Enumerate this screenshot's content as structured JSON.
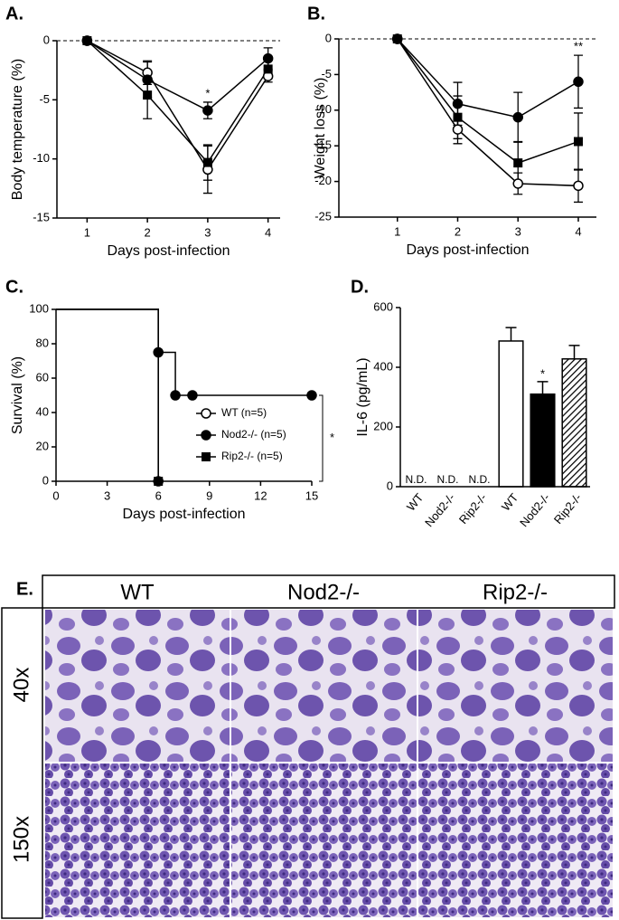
{
  "chart_data": [
    {
      "type": "line",
      "panel_label": "A.",
      "y_label": "Body temperature (%)",
      "x_label": "Days post-infection",
      "x": [
        1,
        2,
        3,
        4
      ],
      "xlim": [
        0.5,
        4.2
      ],
      "xticks": [
        1,
        2,
        3,
        4
      ],
      "ylim": [
        -15,
        0
      ],
      "yticks": [
        0,
        -5,
        -10,
        -15
      ],
      "reference_line": 0,
      "series": [
        {
          "marker": "open-circle",
          "color": "#000000",
          "values": [
            0,
            -2.7,
            -10.9,
            -3.0
          ],
          "errors": [
            0,
            1.0,
            2.0,
            0.5
          ]
        },
        {
          "marker": "circle",
          "color": "#000000",
          "values": [
            0,
            -3.3,
            -5.9,
            -1.5
          ],
          "errors": [
            0,
            1.5,
            0.7,
            0.9
          ]
        },
        {
          "marker": "square",
          "color": "#000000",
          "values": [
            0,
            -4.6,
            -10.3,
            -2.4
          ],
          "errors": [
            0,
            2.0,
            1.5,
            0.8
          ]
        }
      ],
      "significance": [
        null,
        null,
        "*",
        null
      ]
    },
    {
      "type": "line",
      "panel_label": "B.",
      "y_label": "Weight loss (%)",
      "x_label": "Days post-infection",
      "x": [
        1,
        2,
        3,
        4
      ],
      "xlim": [
        0.03,
        4.3
      ],
      "xticks": [
        1,
        2,
        3,
        4
      ],
      "ylim": [
        -25,
        0
      ],
      "yticks": [
        0,
        -5,
        -10,
        -15,
        -20,
        -25
      ],
      "reference_line": 0,
      "series": [
        {
          "marker": "open-circle",
          "color": "#000000",
          "values": [
            0,
            -12.7,
            -20.3,
            -20.6
          ],
          "errors": [
            0,
            2.0,
            1.5,
            2.3
          ]
        },
        {
          "marker": "circle",
          "color": "#000000",
          "values": [
            0,
            -9.1,
            -11.0,
            -6.0
          ],
          "errors": [
            0,
            3.0,
            3.5,
            3.7
          ]
        },
        {
          "marker": "square",
          "color": "#000000",
          "values": [
            0,
            -11.0,
            -17.4,
            -14.4
          ],
          "errors": [
            0,
            3.0,
            3.0,
            4.0
          ]
        }
      ],
      "significance": [
        null,
        null,
        null,
        "**"
      ]
    },
    {
      "type": "step",
      "panel_label": "C.",
      "y_label": "Survival (%)",
      "x_label": "Days post-infection",
      "xlim": [
        0,
        15
      ],
      "xticks": [
        0,
        3,
        6,
        9,
        12,
        15
      ],
      "ylim": [
        0,
        100
      ],
      "yticks": [
        0,
        20,
        40,
        60,
        80,
        100
      ],
      "legend": "lower right",
      "series": [
        {
          "name": "WT (n=5)",
          "marker": "open-circle",
          "color": "#000000",
          "x": [
            0,
            6
          ],
          "values": [
            100,
            0
          ]
        },
        {
          "name": "Nod2-/- (n=5)",
          "marker": "circle",
          "color": "#000000",
          "x": [
            0,
            6,
            7,
            8,
            15
          ],
          "values": [
            100,
            75,
            50,
            50,
            50
          ]
        },
        {
          "name": "Rip2-/- (n=5)",
          "marker": "square",
          "color": "#000000",
          "x": [
            0,
            6
          ],
          "values": [
            100,
            0
          ]
        }
      ],
      "significance": "*"
    },
    {
      "type": "bar",
      "panel_label": "D.",
      "y_label": "IL-6 (pg/mL)",
      "categories": [
        "WT",
        "Nod2-/-",
        "Rip2-/-",
        "WT",
        "Nod2-/-",
        "Rip2-/-"
      ],
      "values": [
        null,
        null,
        null,
        488,
        310,
        428
      ],
      "errors": [
        null,
        null,
        null,
        45,
        42,
        45
      ],
      "value_labels": [
        "N.D.",
        "N.D.",
        "N.D.",
        null,
        null,
        null
      ],
      "colors": [
        "#ffffff",
        "#ffffff",
        "#ffffff",
        "#ffffff",
        "#000000",
        "#ffffff"
      ],
      "hatch": [
        false,
        false,
        false,
        false,
        false,
        true
      ],
      "ylim": [
        0,
        600
      ],
      "yticks": [
        0,
        200,
        400,
        600
      ],
      "significance": [
        null,
        null,
        null,
        null,
        "*",
        null
      ]
    }
  ],
  "panel_e": {
    "label": "E.",
    "columns": [
      "WT",
      "Nod2-/-",
      "Rip2-/-"
    ],
    "rows": [
      "40x",
      "150x"
    ]
  }
}
